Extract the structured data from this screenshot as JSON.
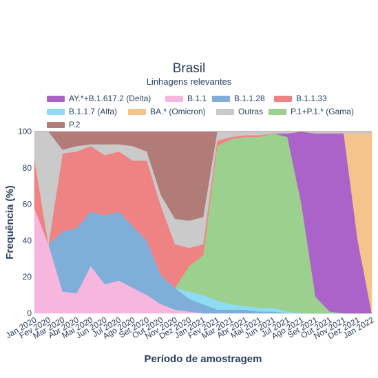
{
  "chart_data": {
    "type": "area",
    "title": "Brasil",
    "subtitle": "Linhagens relevantes",
    "xlabel": "Período de amostragem",
    "ylabel": "Frequência (%)",
    "ylim": [
      0,
      100
    ],
    "yticks": [
      "0",
      "20",
      "40",
      "60",
      "80",
      "100"
    ],
    "categories": [
      "Jan 2020",
      "Fev 2020",
      "Mar 2020",
      "Abr 2020",
      "Mai 2020",
      "Jun 2020",
      "Jul 2020",
      "Ago 2020",
      "Set 2020",
      "Out 2020",
      "Nov 2020",
      "Dez 2020",
      "Jan 2021",
      "Fev 2021",
      "Mar 2021",
      "Abr 2021",
      "Mai 2021",
      "Jun 2021",
      "Jul 2021",
      "Ago 2021",
      "Set 2021",
      "Out 2021",
      "Nov 2021",
      "Dez 2021",
      "Jan 2022"
    ],
    "legend_placement": "top",
    "stack_order": [
      "B.1.1",
      "B.1.1.28",
      "B.1.1.7 (Alfa)",
      "P.1+P.1.* (Gama)",
      "AY.*+B.1.617.2 (Delta)",
      "BA.* (Omicron)",
      "B.1.1.33",
      "Outras",
      "P.2"
    ],
    "series": [
      {
        "name": "AY.*+B.1.617.2 (Delta)",
        "color": "#ab63c9",
        "values": [
          0,
          0,
          0,
          0,
          0,
          0,
          0,
          0,
          0,
          0,
          0,
          0,
          0,
          0,
          0,
          0,
          0,
          0,
          2,
          40,
          90,
          98,
          99,
          40,
          0
        ]
      },
      {
        "name": "B.1.1",
        "color": "#f7b6de",
        "values": [
          58,
          38,
          12,
          11,
          26,
          16,
          18,
          14,
          10,
          5,
          2,
          1,
          0,
          0,
          0,
          0,
          0,
          0,
          0,
          0,
          0,
          0,
          0,
          0,
          0
        ]
      },
      {
        "name": "B.1.1.28",
        "color": "#7fafd9",
        "values": [
          0,
          0,
          33,
          36,
          30,
          38,
          38,
          34,
          30,
          16,
          12,
          7,
          5,
          2,
          2,
          2,
          1,
          1,
          0,
          0,
          0,
          0,
          0,
          0,
          0
        ]
      },
      {
        "name": "B.1.1.33",
        "color": "#ef8383",
        "values": [
          27,
          0,
          43,
          42,
          36,
          33,
          33,
          36,
          44,
          38,
          24,
          10,
          6,
          3,
          1,
          1,
          1,
          0,
          0,
          0,
          0,
          0,
          0,
          0,
          0
        ]
      },
      {
        "name": "B.1.1.7 (Alfa)",
        "color": "#8ddcf1",
        "values": [
          0,
          0,
          0,
          0,
          0,
          0,
          0,
          0,
          0,
          0,
          0,
          4,
          5,
          5,
          3,
          2,
          2,
          2,
          1,
          0,
          0,
          0,
          0,
          0,
          0
        ]
      },
      {
        "name": "BA.* (Omicron)",
        "color": "#f5c48c",
        "values": [
          0,
          0,
          0,
          0,
          0,
          0,
          0,
          0,
          0,
          0,
          0,
          0,
          0,
          0,
          0,
          0,
          0,
          0,
          0,
          0,
          0,
          0,
          0,
          59,
          99
        ]
      },
      {
        "name": "Outras",
        "color": "#cacaca",
        "values": [
          15,
          62,
          2,
          3,
          1,
          6,
          4,
          8,
          5,
          6,
          14,
          15,
          15,
          5,
          3,
          2,
          2,
          1,
          1,
          0,
          1,
          1,
          1,
          1,
          1
        ]
      },
      {
        "name": "P.1+P.1.* (Gama)",
        "color": "#9bd08f",
        "values": [
          0,
          0,
          0,
          0,
          0,
          0,
          0,
          0,
          0,
          0,
          0,
          14,
          22,
          85,
          91,
          93,
          94,
          96,
          96,
          60,
          9,
          1,
          0,
          0,
          0
        ]
      },
      {
        "name": "P.2",
        "color": "#b17c77",
        "values": [
          0,
          0,
          10,
          8,
          7,
          7,
          7,
          8,
          11,
          35,
          48,
          49,
          47,
          0,
          0,
          0,
          0,
          0,
          0,
          0,
          0,
          0,
          0,
          0,
          0
        ]
      }
    ]
  }
}
